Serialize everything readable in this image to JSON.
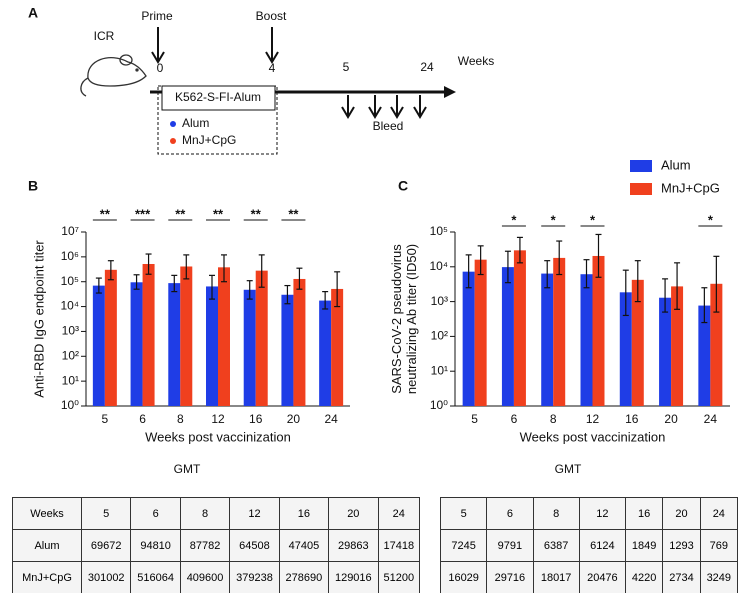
{
  "schematic": {
    "panel": "A",
    "animal": "ICR",
    "prime": "Prime",
    "boost": "Boost",
    "timepoints": [
      "0",
      "4",
      "5",
      "24"
    ],
    "unit": "Weeks",
    "vaccine": "K562-S-FI-Alum",
    "legend": [
      "Alum",
      "MnJ+CpG"
    ],
    "bleed": "Bleed"
  },
  "chart_data": [
    {
      "type": "bar",
      "panel": "B",
      "ylabel": [
        "Anti-RBD IgG endpoint titer"
      ],
      "xlabel": "Weeks post vaccinization",
      "log_scale": true,
      "ylim": [
        1,
        10000000
      ],
      "yticks": [
        {
          "value": 1,
          "label": "10⁰"
        },
        {
          "value": 10,
          "label": "10¹"
        },
        {
          "value": 100,
          "label": "10²"
        },
        {
          "value": 1000,
          "label": "10³"
        },
        {
          "value": 10000,
          "label": "10⁴"
        },
        {
          "value": 100000,
          "label": "10⁵"
        },
        {
          "value": 1000000,
          "label": "10⁶"
        },
        {
          "value": 10000000,
          "label": "10⁷"
        }
      ],
      "categories": [
        "5",
        "6",
        "8",
        "12",
        "16",
        "20",
        "24"
      ],
      "series": [
        {
          "name": "Alum",
          "color": "#1f3de6",
          "values": [
            69672,
            94810,
            87782,
            64508,
            47405,
            29863,
            17418
          ],
          "error_upper": [
            140000,
            190000,
            180000,
            180000,
            110000,
            70000,
            40000
          ],
          "error_lower": [
            35000,
            50000,
            40000,
            20000,
            20000,
            13000,
            8000
          ]
        },
        {
          "name": "MnJ+CpG",
          "color": "#f0401e",
          "values": [
            301002,
            516064,
            409600,
            379238,
            278690,
            129016,
            51200
          ],
          "error_upper": [
            700000,
            1300000,
            1200000,
            1200000,
            1200000,
            350000,
            250000
          ],
          "error_lower": [
            120000,
            200000,
            130000,
            100000,
            60000,
            50000,
            10000
          ]
        }
      ],
      "significance": [
        "**",
        "***",
        "**",
        "**",
        "**",
        "**",
        null
      ],
      "table_title": "GMT",
      "table_header": "Weeks"
    },
    {
      "type": "bar",
      "panel": "C",
      "ylabel": [
        "SARS-CoV-2 pseudovirus",
        "neutralizing Ab titer (ID50)"
      ],
      "xlabel": "Weeks post vaccinization",
      "log_scale": true,
      "ylim": [
        1,
        100000
      ],
      "legend": true,
      "yticks": [
        {
          "value": 1,
          "label": "10⁰"
        },
        {
          "value": 10,
          "label": "10¹"
        },
        {
          "value": 100,
          "label": "10²"
        },
        {
          "value": 1000,
          "label": "10³"
        },
        {
          "value": 10000,
          "label": "10⁴"
        },
        {
          "value": 100000,
          "label": "10⁵"
        }
      ],
      "categories": [
        "5",
        "6",
        "8",
        "12",
        "16",
        "20",
        "24"
      ],
      "series": [
        {
          "name": "Alum",
          "color": "#1f3de6",
          "values": [
            7245,
            9791,
            6387,
            6124,
            1849,
            1293,
            769
          ],
          "error_upper": [
            22000,
            28000,
            15000,
            16000,
            8000,
            4500,
            2500
          ],
          "error_lower": [
            2500,
            3500,
            2500,
            2500,
            400,
            500,
            250
          ]
        },
        {
          "name": "MnJ+CpG",
          "color": "#f0401e",
          "values": [
            16029,
            29716,
            18017,
            20476,
            4220,
            2734,
            3249
          ],
          "error_upper": [
            40000,
            70000,
            55000,
            85000,
            15000,
            13000,
            20000
          ],
          "error_lower": [
            6000,
            13000,
            6000,
            5000,
            1000,
            600,
            500
          ]
        }
      ],
      "significance": [
        null,
        "*",
        "*",
        "*",
        null,
        null,
        "*"
      ],
      "table_title": "GMT"
    }
  ]
}
